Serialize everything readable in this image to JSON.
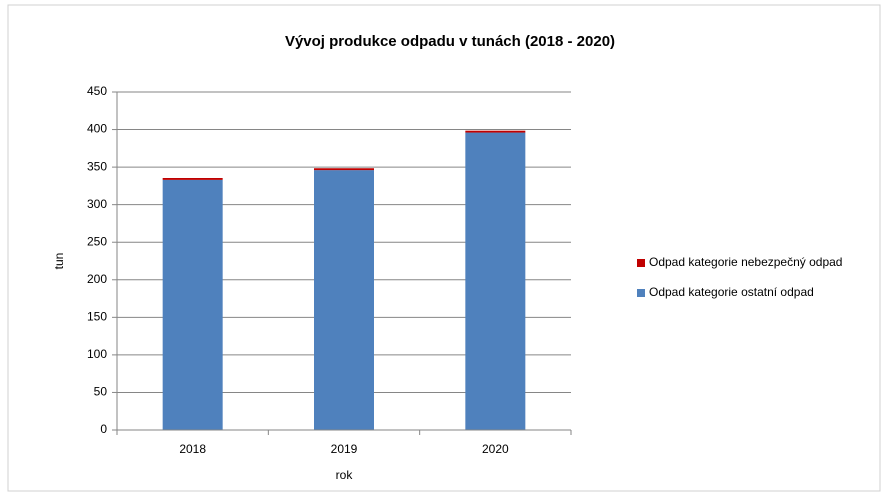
{
  "chart_data": {
    "type": "stacked_bar",
    "title": "Vývoj produkce odpadu v tunách (2018 - 2020)",
    "x_label": "rok",
    "y_label": "tun",
    "categories": [
      "2018",
      "2019",
      "2020"
    ],
    "series": [
      {
        "name": "Odpad kategorie ostatní odpad",
        "color": "#4f81bd",
        "values": [
          333,
          346,
          396
        ]
      },
      {
        "name": "Odpad kategorie nebezpečný odpad",
        "color": "#c00000",
        "values": [
          2.5,
          2.5,
          2.5
        ]
      }
    ],
    "ylim": [
      0,
      450
    ],
    "yticks": [
      0,
      50,
      100,
      150,
      200,
      250,
      300,
      350,
      400,
      450
    ],
    "grid": true,
    "legend": "right"
  }
}
